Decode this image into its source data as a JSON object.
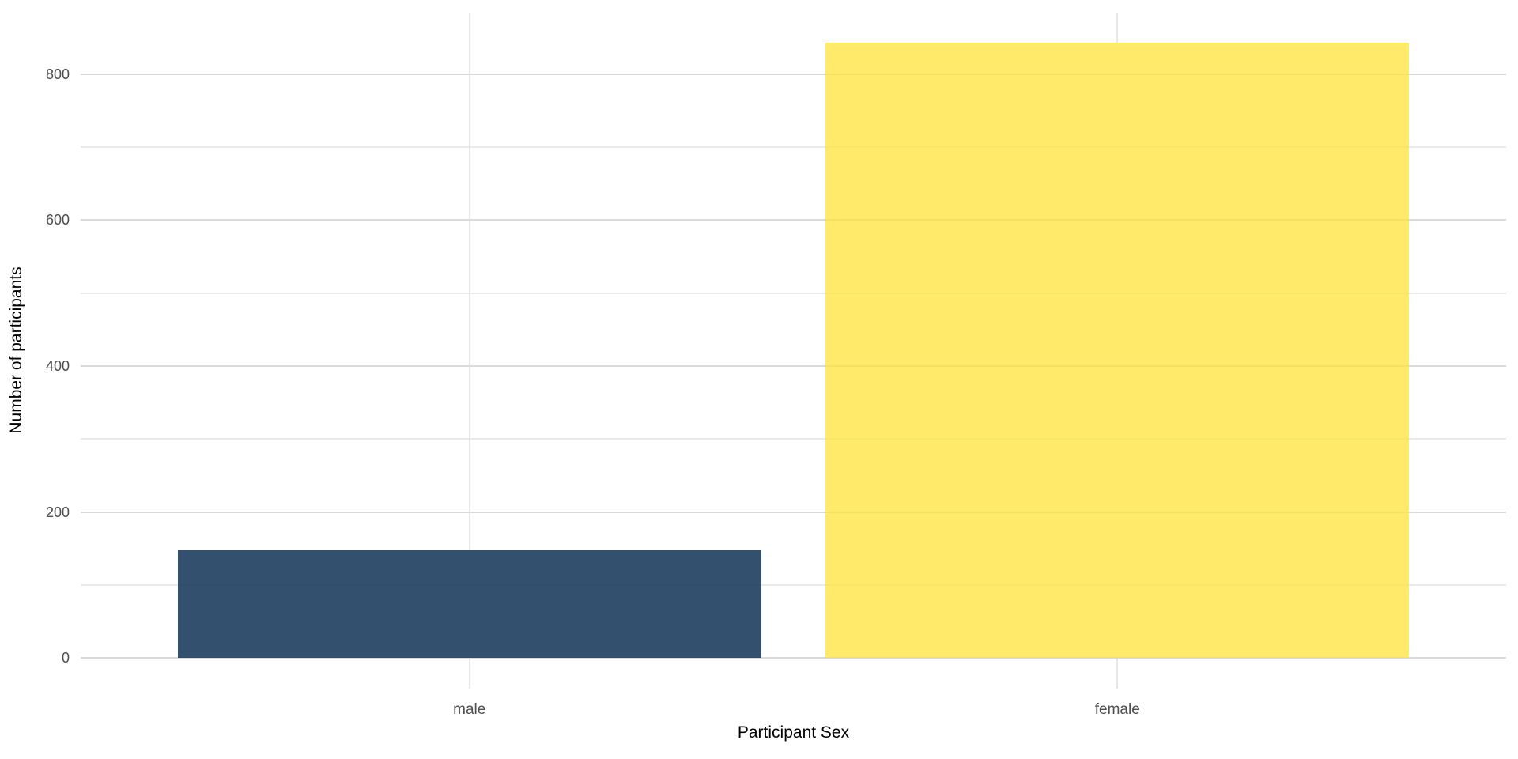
{
  "figure": {
    "background": "#ffffff"
  },
  "chart_data": {
    "type": "bar",
    "title": "",
    "xlabel": "Participant Sex",
    "ylabel": "Number of participants",
    "categories": [
      "male",
      "female"
    ],
    "values": [
      148,
      843
    ],
    "bar_colors": [
      "#33506F",
      "#FFEB69"
    ],
    "yticks": [
      0,
      200,
      400,
      600,
      800
    ],
    "ytick_labels": [
      "0",
      "200",
      "400",
      "600",
      "800"
    ],
    "yminor": [
      100,
      300,
      500,
      700
    ],
    "ylim": [
      -42,
      884
    ],
    "grid": "on",
    "legend": "none",
    "bar_width_fraction": 0.9
  },
  "style": {
    "tick_label_color": "#4D4D4D",
    "axis_title_color": "#000000",
    "grid_major_color": "#E3E3E3",
    "grid_minor_color": "#F0F0F0",
    "grid_vertical_color": "#E7E7E7"
  }
}
